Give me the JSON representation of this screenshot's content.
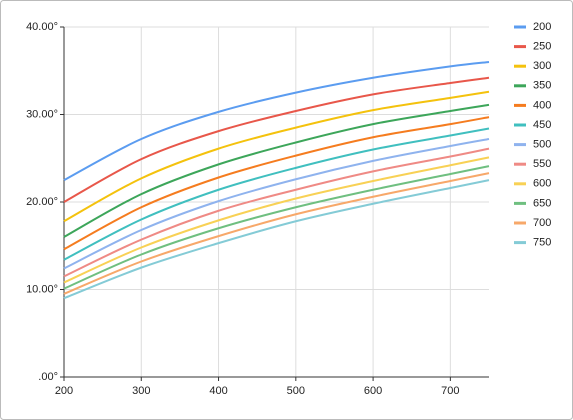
{
  "chart_data": {
    "type": "line",
    "x": [
      200,
      300,
      400,
      500,
      600,
      700,
      750
    ],
    "xlim": [
      200,
      750
    ],
    "xticks": [
      200,
      300,
      400,
      500,
      600,
      700
    ],
    "ylim": [
      0,
      40
    ],
    "yticks": [
      {
        "value": 0,
        "label": ".00°"
      },
      {
        "value": 10,
        "label": "10.00°"
      },
      {
        "value": 20,
        "label": "20.00°"
      },
      {
        "value": 30,
        "label": "30.00°"
      },
      {
        "value": 40,
        "label": "40.00°"
      }
    ],
    "grid": true,
    "legend": "right",
    "series": [
      {
        "name": "200",
        "color": "#5b9cf0",
        "values": [
          22.5,
          27.2,
          30.3,
          32.5,
          34.2,
          35.5,
          36.0
        ]
      },
      {
        "name": "250",
        "color": "#e8574a",
        "values": [
          20.0,
          24.9,
          28.1,
          30.4,
          32.3,
          33.6,
          34.2
        ]
      },
      {
        "name": "300",
        "color": "#f4c20d",
        "values": [
          17.8,
          22.7,
          26.1,
          28.5,
          30.5,
          31.9,
          32.6
        ]
      },
      {
        "name": "350",
        "color": "#3da65a",
        "values": [
          16.0,
          20.9,
          24.3,
          26.8,
          28.9,
          30.4,
          31.1
        ]
      },
      {
        "name": "400",
        "color": "#f57c1f",
        "values": [
          14.6,
          19.4,
          22.8,
          25.3,
          27.4,
          28.9,
          29.7
        ]
      },
      {
        "name": "450",
        "color": "#40bfbf",
        "values": [
          13.4,
          18.0,
          21.4,
          23.9,
          26.0,
          27.6,
          28.4
        ]
      },
      {
        "name": "500",
        "color": "#8fb3ee",
        "values": [
          12.4,
          16.8,
          20.1,
          22.6,
          24.7,
          26.4,
          27.2
        ]
      },
      {
        "name": "550",
        "color": "#ef8a85",
        "values": [
          11.5,
          15.7,
          19.0,
          21.4,
          23.5,
          25.2,
          26.1
        ]
      },
      {
        "name": "600",
        "color": "#f8d155",
        "values": [
          10.8,
          14.8,
          17.9,
          20.4,
          22.4,
          24.2,
          25.1
        ]
      },
      {
        "name": "650",
        "color": "#6fbf80",
        "values": [
          10.1,
          14.0,
          17.0,
          19.4,
          21.4,
          23.2,
          24.1
        ]
      },
      {
        "name": "700",
        "color": "#f7a86a",
        "values": [
          9.5,
          13.2,
          16.1,
          18.6,
          20.6,
          22.4,
          23.3
        ]
      },
      {
        "name": "750",
        "color": "#84cbd6",
        "values": [
          9.0,
          12.5,
          15.3,
          17.8,
          19.8,
          21.6,
          22.5
        ]
      }
    ]
  }
}
